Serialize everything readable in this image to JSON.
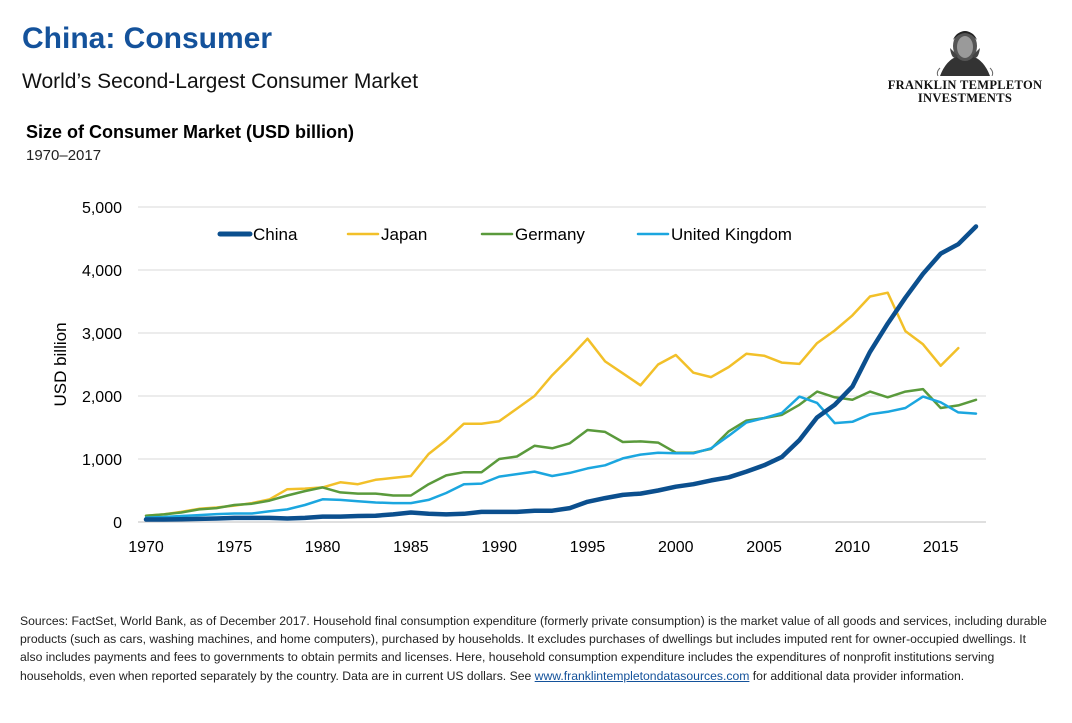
{
  "header": {
    "title": "China: Consumer",
    "subtitle": "World’s Second-Largest Consumer Market"
  },
  "logo": {
    "line1": "FRANKLIN TEMPLETON",
    "line2": "INVESTMENTS"
  },
  "chart_header": {
    "title": "Size of Consumer Market (USD billion)",
    "subtitle": "1970–2017"
  },
  "chart_data": {
    "type": "line",
    "xlabel": "",
    "ylabel": "USD billion",
    "xlim": [
      1970,
      2017
    ],
    "ylim": [
      0,
      5000
    ],
    "x_ticks": [
      "1970",
      "1975",
      "1980",
      "1985",
      "1990",
      "1995",
      "2000",
      "2005",
      "2010",
      "2015"
    ],
    "y_ticks": [
      "0",
      "1,000",
      "2,000",
      "3,000",
      "4,000",
      "5,000"
    ],
    "grid": "horizontal",
    "legend_position": "top",
    "x": [
      1970,
      1971,
      1972,
      1973,
      1974,
      1975,
      1976,
      1977,
      1978,
      1979,
      1980,
      1981,
      1982,
      1983,
      1984,
      1985,
      1986,
      1987,
      1988,
      1989,
      1990,
      1991,
      1992,
      1993,
      1994,
      1995,
      1996,
      1997,
      1998,
      1999,
      2000,
      2001,
      2002,
      2003,
      2004,
      2005,
      2006,
      2007,
      2008,
      2009,
      2010,
      2011,
      2012,
      2013,
      2014,
      2015,
      2016,
      2017
    ],
    "series": [
      {
        "name": "China",
        "color": "#0b4f8e",
        "width": 4.5,
        "values": [
          40,
          40,
          45,
          50,
          55,
          65,
          65,
          65,
          55,
          65,
          85,
          85,
          95,
          100,
          120,
          150,
          130,
          120,
          130,
          160,
          160,
          160,
          180,
          180,
          220,
          320,
          380,
          430,
          450,
          500,
          560,
          600,
          660,
          710,
          800,
          900,
          1030,
          1300,
          1660,
          1860,
          2150,
          2700,
          3150,
          3560,
          3940,
          4260,
          4410,
          4690
        ]
      },
      {
        "name": "Japan",
        "color": "#f2c029",
        "width": 2.5,
        "values": [
          100,
          120,
          160,
          210,
          230,
          260,
          300,
          360,
          520,
          530,
          550,
          630,
          600,
          670,
          700,
          730,
          1080,
          1300,
          1560,
          1560,
          1600,
          1800,
          2000,
          2330,
          2610,
          2910,
          2550,
          2360,
          2170,
          2500,
          2650,
          2370,
          2300,
          2460,
          2670,
          2640,
          2530,
          2510,
          2840,
          3040,
          3280,
          3580,
          3640,
          3030,
          2820,
          2480,
          2760,
          null
        ]
      },
      {
        "name": "Germany",
        "color": "#5a9a3c",
        "width": 2.5,
        "values": [
          100,
          120,
          150,
          200,
          220,
          270,
          290,
          340,
          420,
          490,
          550,
          470,
          450,
          450,
          420,
          420,
          600,
          740,
          790,
          790,
          1000,
          1040,
          1210,
          1170,
          1250,
          1460,
          1430,
          1270,
          1280,
          1260,
          1100,
          1100,
          1160,
          1440,
          1610,
          1650,
          1700,
          1860,
          2070,
          1980,
          1940,
          2070,
          1980,
          2070,
          2110,
          1810,
          1850,
          1940
        ]
      },
      {
        "name": "United Kingdom",
        "color": "#1ba6df",
        "width": 2.5,
        "values": [
          70,
          80,
          95,
          110,
          125,
          135,
          135,
          170,
          200,
          270,
          360,
          350,
          330,
          310,
          300,
          300,
          350,
          460,
          600,
          610,
          720,
          760,
          800,
          730,
          780,
          850,
          900,
          1010,
          1070,
          1100,
          1090,
          1090,
          1170,
          1370,
          1580,
          1650,
          1730,
          1990,
          1890,
          1570,
          1590,
          1710,
          1750,
          1810,
          1990,
          1900,
          1740,
          1720
        ]
      }
    ]
  },
  "footnote": {
    "text_before": "Sources: FactSet, World Bank, as of December 2017. Household final consumption expenditure (formerly private consumption) is the market value of all goods and services, including durable products (such as cars, washing machines, and home computers), purchased by households. It excludes purchases of dwellings but includes imputed rent for owner-occupied dwellings. It also includes payments and fees to governments to obtain permits and licenses. Here, household consumption expenditure includes the expenditures of nonprofit institutions serving households, even when reported separately by the country. Data are in current US dollars. See ",
    "link": "www.franklintempletondatasources.com",
    "text_after": " for additional data provider information."
  }
}
